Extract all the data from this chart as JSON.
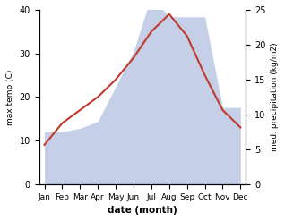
{
  "months": [
    "Jan",
    "Feb",
    "Mar",
    "Apr",
    "May",
    "Jun",
    "Jul",
    "Aug",
    "Sep",
    "Oct",
    "Nov",
    "Dec"
  ],
  "temperature": [
    9,
    14,
    17,
    20,
    24,
    29,
    35,
    39,
    34,
    25,
    17,
    13
  ],
  "precipitation": [
    7.5,
    7.5,
    8,
    9,
    14,
    19,
    27,
    24,
    24,
    24,
    11,
    11
  ],
  "temp_color": "#c0392b",
  "precip_color": "#c5cfe8",
  "temp_ylim": [
    0,
    40
  ],
  "precip_ylim": [
    0,
    40
  ],
  "right_ylim": [
    0,
    25
  ],
  "temp_yticks": [
    0,
    10,
    20,
    30,
    40
  ],
  "precip_yticks_right": [
    0,
    5,
    10,
    15,
    20,
    25
  ],
  "scale_factor": 1.6,
  "xlabel": "date (month)",
  "ylabel_left": "max temp (C)",
  "ylabel_right": "med. precipitation (kg/m2)",
  "background_color": "#ffffff"
}
